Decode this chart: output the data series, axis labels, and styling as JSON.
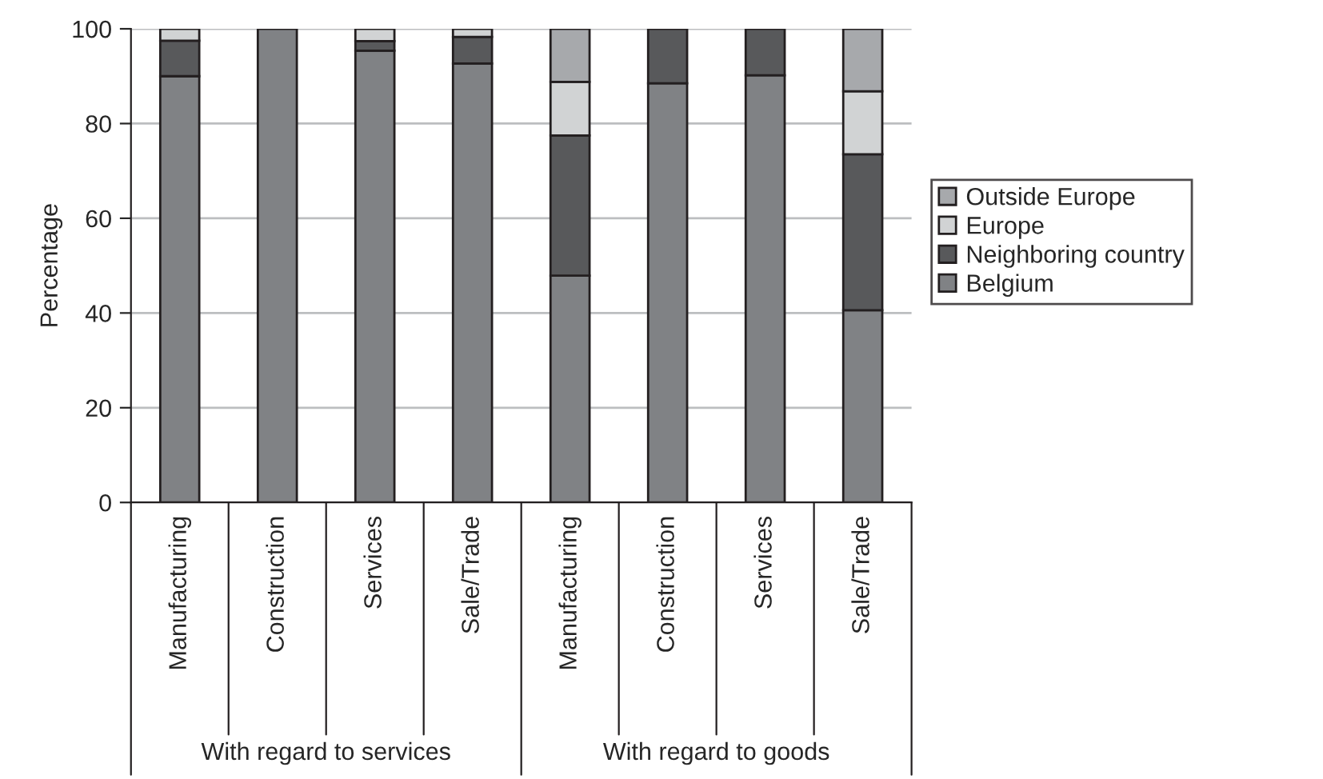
{
  "chart_data": {
    "type": "bar",
    "stacked": true,
    "ylabel": "Percentage",
    "categories": [
      "Manufacturing",
      "Construction",
      "Services",
      "Sale/Trade",
      "Manufacturing",
      "Construction",
      "Services",
      "Sale/Trade"
    ],
    "series": [
      {
        "name": "Belgium",
        "color": "#808285",
        "values": [
          90.0,
          100,
          95.4,
          92.7,
          47.9,
          88.5,
          90.2,
          40.6
        ]
      },
      {
        "name": "Neighboring country",
        "color": "#58595b",
        "values": [
          7.5,
          null,
          2.0,
          5.6,
          29.6,
          11.5,
          9.8,
          32.9
        ]
      },
      {
        "name": "Europe",
        "color": "#d1d3d4",
        "values": [
          2.5,
          null,
          2.6,
          1.7,
          11.3,
          null,
          null,
          13.3
        ]
      },
      {
        "name": "Outside Europe",
        "color": "#a7a9ac",
        "values": [
          null,
          null,
          null,
          null,
          11.2,
          null,
          null,
          13.2
        ]
      }
    ],
    "ylim": [
      0,
      100
    ],
    "yticks": [
      0,
      20,
      40,
      60,
      80,
      100
    ],
    "grid": "y",
    "legend": "right",
    "annotations": [
      "With regard to services",
      "With regard to goods"
    ]
  }
}
